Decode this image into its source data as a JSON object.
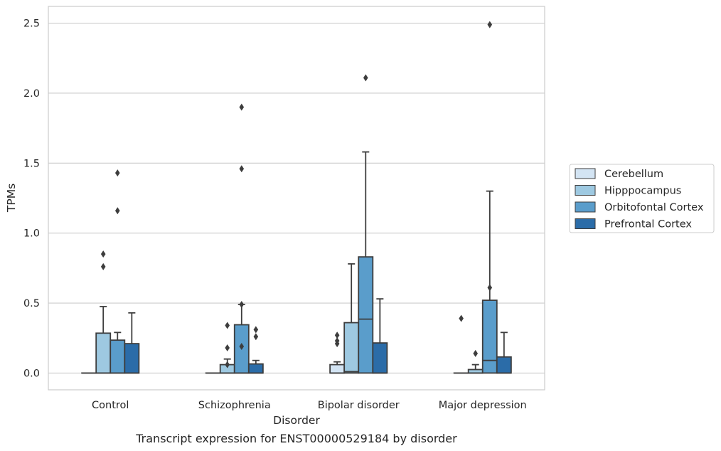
{
  "chart_data": {
    "type": "box",
    "caption": "Transcript expression for ENST00000529184 by disorder",
    "xlabel": "Disorder",
    "ylabel": "TPMs",
    "ylim": [
      -0.12,
      2.62
    ],
    "yticks": [
      "0.0",
      "0.5",
      "1.0",
      "1.5",
      "2.0",
      "2.5"
    ],
    "ytick_values": [
      0,
      0.5,
      1.0,
      1.5,
      2.0,
      2.5
    ],
    "grid": "horizontal",
    "legend_position": "right",
    "categories": [
      "Control",
      "Schizophrenia",
      "Bipolar disorder",
      "Major depression"
    ],
    "series": [
      {
        "name": "Cerebellum",
        "color": "#d3e4f3",
        "boxes": [
          {
            "q1": 0,
            "median": 0,
            "q3": 0,
            "whisker_low": 0,
            "whisker_high": 0,
            "outliers": []
          },
          {
            "q1": 0,
            "median": 0,
            "q3": 0,
            "whisker_low": 0,
            "whisker_high": 0,
            "outliers": []
          },
          {
            "q1": 0,
            "median": 0,
            "q3": 0.06,
            "whisker_low": 0,
            "whisker_high": 0.08,
            "outliers": [
              0.21,
              0.23,
              0.27
            ]
          },
          {
            "q1": 0,
            "median": 0,
            "q3": 0,
            "whisker_low": 0,
            "whisker_high": 0,
            "outliers": [
              0.39
            ]
          }
        ]
      },
      {
        "name": "Hipppocampus",
        "color": "#9ec9e1",
        "boxes": [
          {
            "q1": 0,
            "median": 0,
            "q3": 0.285,
            "whisker_low": 0,
            "whisker_high": 0.475,
            "outliers": [
              0.76,
              0.85
            ]
          },
          {
            "q1": 0,
            "median": 0,
            "q3": 0.06,
            "whisker_low": 0,
            "whisker_high": 0.1,
            "outliers": [
              0.06,
              0.18,
              0.34
            ]
          },
          {
            "q1": 0,
            "median": 0.01,
            "q3": 0.36,
            "whisker_low": 0,
            "whisker_high": 0.78,
            "outliers": []
          },
          {
            "q1": 0,
            "median": 0,
            "q3": 0.025,
            "whisker_low": 0,
            "whisker_high": 0.06,
            "outliers": [
              0.14
            ]
          }
        ]
      },
      {
        "name": "Orbitofontal Cortex",
        "color": "#5a9dcb",
        "boxes": [
          {
            "q1": 0,
            "median": 0,
            "q3": 0.235,
            "whisker_low": 0,
            "whisker_high": 0.29,
            "outliers": [
              1.16,
              1.43
            ]
          },
          {
            "q1": 0,
            "median": 0,
            "q3": 0.345,
            "whisker_low": 0,
            "whisker_high": 0.49,
            "outliers": [
              0.19,
              0.49,
              1.46,
              1.9
            ]
          },
          {
            "q1": 0,
            "median": 0.385,
            "q3": 0.83,
            "whisker_low": 0,
            "whisker_high": 1.58,
            "outliers": [
              2.11
            ]
          },
          {
            "q1": 0,
            "median": 0.09,
            "q3": 0.52,
            "whisker_low": 0,
            "whisker_high": 1.3,
            "outliers": [
              0.61,
              2.49
            ]
          }
        ]
      },
      {
        "name": "Prefrontal Cortex",
        "color": "#2b6ca8",
        "boxes": [
          {
            "q1": 0,
            "median": 0,
            "q3": 0.21,
            "whisker_low": 0,
            "whisker_high": 0.43,
            "outliers": []
          },
          {
            "q1": 0,
            "median": 0,
            "q3": 0.065,
            "whisker_low": 0,
            "whisker_high": 0.09,
            "outliers": [
              0.26,
              0.31
            ]
          },
          {
            "q1": 0,
            "median": 0,
            "q3": 0.215,
            "whisker_low": 0,
            "whisker_high": 0.53,
            "outliers": []
          },
          {
            "q1": 0,
            "median": 0,
            "q3": 0.115,
            "whisker_low": 0,
            "whisker_high": 0.29,
            "outliers": []
          }
        ]
      }
    ]
  }
}
